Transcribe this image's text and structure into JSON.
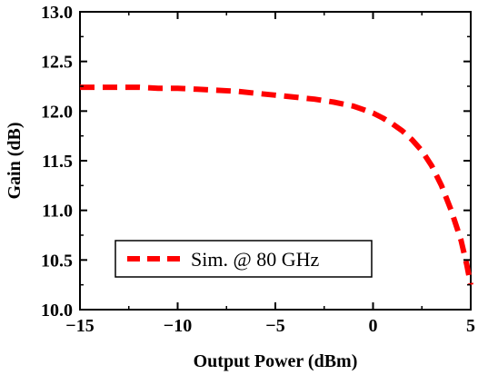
{
  "chart_data": {
    "type": "line",
    "title": "",
    "xlabel": "Output Power (dBm)",
    "ylabel": "Gain (dB)",
    "xlim": [
      -15,
      5
    ],
    "ylim": [
      10.0,
      13.0
    ],
    "x_ticks": [
      -15,
      -10,
      -5,
      0,
      5
    ],
    "x_tick_labels": [
      "−15",
      "−10",
      "−5",
      "0",
      "5"
    ],
    "y_ticks": [
      10.0,
      10.5,
      11.0,
      11.5,
      12.0,
      12.5,
      13.0
    ],
    "y_tick_labels": [
      "10.0",
      "10.5",
      "11.0",
      "11.5",
      "12.0",
      "12.5",
      "13.0"
    ],
    "grid": false,
    "legend_position": "bottom-center",
    "series": [
      {
        "name": "Sim. @ 80 GHz",
        "color": "#ff0000",
        "line_style": "dashed",
        "x": [
          -15,
          -14,
          -13,
          -12,
          -11,
          -10,
          -9,
          -8,
          -7,
          -6,
          -5,
          -4,
          -3,
          -2,
          -1,
          0,
          0.5,
          1,
          1.5,
          2,
          2.5,
          3,
          3.5,
          4,
          4.5,
          4.8,
          5
        ],
        "y": [
          12.24,
          12.24,
          12.24,
          12.24,
          12.23,
          12.23,
          12.22,
          12.21,
          12.2,
          12.18,
          12.16,
          12.14,
          12.12,
          12.09,
          12.05,
          11.98,
          11.93,
          11.87,
          11.8,
          11.71,
          11.6,
          11.45,
          11.25,
          11.0,
          10.7,
          10.45,
          10.25
        ]
      }
    ]
  }
}
